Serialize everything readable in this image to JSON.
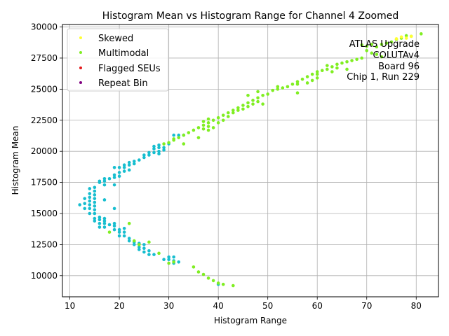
{
  "chart_data": {
    "type": "scatter",
    "title": "Histogram Mean vs Histogram Range for Channel 4 Zoomed",
    "xlabel": "Histogram Range",
    "ylabel": "Histogram Mean",
    "xlim": [
      8.5,
      84.5
    ],
    "ylim": [
      8300,
      30200
    ],
    "xticks": [
      10,
      20,
      30,
      40,
      50,
      60,
      70,
      80
    ],
    "yticks": [
      10000,
      12500,
      15000,
      17500,
      20000,
      22500,
      25000,
      27500,
      30000
    ],
    "grid": true,
    "legend_position": "top-left",
    "annotation": [
      "ATLAS Upgrade",
      "COLUTAv4",
      "Board 96",
      "Chip 1, Run 229"
    ],
    "series": [
      {
        "name": "Skewed",
        "color": "#ffff33",
        "points": [
          [
            77,
            29200
          ],
          [
            78,
            29100
          ],
          [
            79,
            29250
          ],
          [
            76,
            29050
          ]
        ]
      },
      {
        "name": "Multimodal",
        "color": "#80ee22",
        "points": [
          [
            81,
            29450
          ],
          [
            79,
            29250
          ],
          [
            78,
            29300
          ],
          [
            77,
            29100
          ],
          [
            76,
            29000
          ],
          [
            75,
            28800
          ],
          [
            74,
            28700
          ],
          [
            73,
            28600
          ],
          [
            72,
            28400
          ],
          [
            71,
            28600
          ],
          [
            70,
            28450
          ],
          [
            69,
            28550
          ],
          [
            70,
            28100
          ],
          [
            71,
            27900
          ],
          [
            72,
            27800
          ],
          [
            73,
            27600
          ],
          [
            69,
            27500
          ],
          [
            68,
            27400
          ],
          [
            67,
            27300
          ],
          [
            66,
            27200
          ],
          [
            65,
            27100
          ],
          [
            64,
            27000
          ],
          [
            63,
            26800
          ],
          [
            62,
            26600
          ],
          [
            61,
            26500
          ],
          [
            60,
            26400
          ],
          [
            59,
            26200
          ],
          [
            58,
            26000
          ],
          [
            57,
            25800
          ],
          [
            56,
            25600
          ],
          [
            55,
            25400
          ],
          [
            54,
            25200
          ],
          [
            53,
            25100
          ],
          [
            52,
            25000
          ],
          [
            51,
            24900
          ],
          [
            50,
            24600
          ],
          [
            49,
            24500
          ],
          [
            48,
            24300
          ],
          [
            47,
            24100
          ],
          [
            46,
            23900
          ],
          [
            45,
            23700
          ],
          [
            44,
            23500
          ],
          [
            43,
            23300
          ],
          [
            42,
            23100
          ],
          [
            41,
            22900
          ],
          [
            40,
            22700
          ],
          [
            39,
            22500
          ],
          [
            38,
            22300
          ],
          [
            37,
            22100
          ],
          [
            36,
            21900
          ],
          [
            35,
            21700
          ],
          [
            34,
            21500
          ],
          [
            33,
            21300
          ],
          [
            32,
            21100
          ],
          [
            31,
            20900
          ],
          [
            30,
            20700
          ],
          [
            29,
            20600
          ],
          [
            38,
            21700
          ],
          [
            38,
            22000
          ],
          [
            38,
            22600
          ],
          [
            37,
            22400
          ],
          [
            37,
            21800
          ],
          [
            39,
            21900
          ],
          [
            40,
            22300
          ],
          [
            41,
            22500
          ],
          [
            42,
            22800
          ],
          [
            43,
            23100
          ],
          [
            44,
            23300
          ],
          [
            45,
            23400
          ],
          [
            46,
            23600
          ],
          [
            47,
            23800
          ],
          [
            48,
            24000
          ],
          [
            46,
            24500
          ],
          [
            48,
            24800
          ],
          [
            49,
            23800
          ],
          [
            52,
            25200
          ],
          [
            56,
            25400
          ],
          [
            56,
            24700
          ],
          [
            58,
            25500
          ],
          [
            59,
            25700
          ],
          [
            60,
            25900
          ],
          [
            60,
            26200
          ],
          [
            62,
            26900
          ],
          [
            63,
            26400
          ],
          [
            64,
            26700
          ],
          [
            66,
            26600
          ],
          [
            33,
            20600
          ],
          [
            31,
            21000
          ],
          [
            36,
            21100
          ],
          [
            22,
            14200
          ],
          [
            24,
            12500
          ],
          [
            26,
            12700
          ],
          [
            28,
            11800
          ],
          [
            18,
            13500
          ],
          [
            23,
            12800
          ],
          [
            30,
            11000
          ],
          [
            31,
            11100
          ],
          [
            35,
            10700
          ],
          [
            36,
            10300
          ],
          [
            37,
            10100
          ],
          [
            38,
            9800
          ],
          [
            39,
            9600
          ],
          [
            40,
            9400
          ],
          [
            41,
            9300
          ],
          [
            43,
            9200
          ]
        ]
      },
      {
        "name": "Flagged SEUs",
        "color": "#e41a1c",
        "points": []
      },
      {
        "name": "Repeat Bin",
        "color": "#800080",
        "points": []
      },
      {
        "name": "",
        "color": "#17becf",
        "points": [
          [
            12,
            15700
          ],
          [
            13,
            15400
          ],
          [
            13,
            15800
          ],
          [
            13,
            16200
          ],
          [
            14,
            15000
          ],
          [
            14,
            15400
          ],
          [
            14,
            15700
          ],
          [
            14,
            16000
          ],
          [
            14,
            16300
          ],
          [
            14,
            16600
          ],
          [
            14,
            17000
          ],
          [
            15,
            14600
          ],
          [
            15,
            15000
          ],
          [
            15,
            15300
          ],
          [
            15,
            15600
          ],
          [
            15,
            15900
          ],
          [
            15,
            16200
          ],
          [
            15,
            16500
          ],
          [
            15,
            16800
          ],
          [
            15,
            17100
          ],
          [
            15,
            14400
          ],
          [
            16,
            13900
          ],
          [
            16,
            14200
          ],
          [
            16,
            14500
          ],
          [
            16,
            14700
          ],
          [
            16,
            17500
          ],
          [
            16,
            17600
          ],
          [
            17,
            13900
          ],
          [
            17,
            14200
          ],
          [
            17,
            14400
          ],
          [
            17,
            14600
          ],
          [
            17,
            16100
          ],
          [
            17,
            17300
          ],
          [
            17,
            17600
          ],
          [
            17,
            17800
          ],
          [
            18,
            14100
          ],
          [
            18,
            17800
          ],
          [
            19,
            13700
          ],
          [
            19,
            14000
          ],
          [
            19,
            14200
          ],
          [
            19,
            15400
          ],
          [
            19,
            17300
          ],
          [
            19,
            17900
          ],
          [
            19,
            18100
          ],
          [
            19,
            18700
          ],
          [
            20,
            13200
          ],
          [
            20,
            13500
          ],
          [
            20,
            13700
          ],
          [
            20,
            18000
          ],
          [
            20,
            18300
          ],
          [
            20,
            18700
          ],
          [
            21,
            13200
          ],
          [
            21,
            13500
          ],
          [
            21,
            13800
          ],
          [
            21,
            18400
          ],
          [
            21,
            18700
          ],
          [
            21,
            18900
          ],
          [
            22,
            12800
          ],
          [
            22,
            13000
          ],
          [
            22,
            18500
          ],
          [
            22,
            18900
          ],
          [
            22,
            19100
          ],
          [
            23,
            12500
          ],
          [
            23,
            12700
          ],
          [
            23,
            19000
          ],
          [
            23,
            19200
          ],
          [
            24,
            12100
          ],
          [
            24,
            12300
          ],
          [
            24,
            12600
          ],
          [
            24,
            19300
          ],
          [
            25,
            11900
          ],
          [
            25,
            12200
          ],
          [
            25,
            12500
          ],
          [
            25,
            19500
          ],
          [
            25,
            19700
          ],
          [
            26,
            11700
          ],
          [
            26,
            12000
          ],
          [
            26,
            19700
          ],
          [
            26,
            19900
          ],
          [
            27,
            11700
          ],
          [
            27,
            19900
          ],
          [
            27,
            20200
          ],
          [
            27,
            20400
          ],
          [
            28,
            19800
          ],
          [
            28,
            20000
          ],
          [
            28,
            20300
          ],
          [
            28,
            20500
          ],
          [
            29,
            11300
          ],
          [
            29,
            20100
          ],
          [
            29,
            20300
          ],
          [
            30,
            11300
          ],
          [
            30,
            11500
          ],
          [
            30,
            20600
          ],
          [
            31,
            11000
          ],
          [
            31,
            11200
          ],
          [
            31,
            11500
          ],
          [
            31,
            21300
          ],
          [
            32,
            11100
          ],
          [
            32,
            21300
          ],
          [
            33,
            21300
          ],
          [
            40,
            9300
          ]
        ]
      }
    ]
  }
}
